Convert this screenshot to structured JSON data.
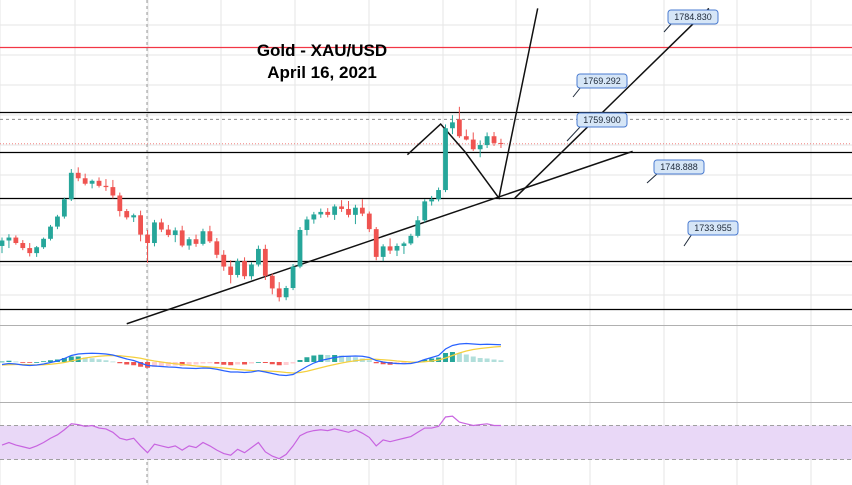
{
  "chart_data": {
    "type": "candlestick",
    "title": "Gold - XAU/USD",
    "subtitle": "April 16, 2021",
    "colors": {
      "bull": "#26a69a",
      "bear": "#ef5350",
      "level": "#000000",
      "resistance": "#f23645",
      "label_bg": "#d6e6f7",
      "label_border": "#4a7bd0",
      "rsi_band": "#e9d8f7",
      "rsi_line": "#c864e0",
      "macd_line": "#2962ff",
      "signal_line": "#f4d03f",
      "hist_bull_strong": "#26a69a",
      "hist_bull_weak": "#b2dfdb",
      "hist_bear_strong": "#ef5350",
      "hist_bear_weak": "#ffcdd2",
      "grid": "#e5e5e5"
    },
    "levels": [
      {
        "label": "1784.830",
        "value": 1784.83,
        "kind": "resistance"
      },
      {
        "label": "1769.292",
        "value": 1769.292,
        "kind": "level"
      },
      {
        "label": "1759.900",
        "value": 1759.9,
        "kind": "level"
      },
      {
        "label": "1748.888",
        "value": 1748.888,
        "kind": "level"
      },
      {
        "label": "1733.955",
        "value": 1733.955,
        "kind": "level"
      }
    ],
    "extra_level": {
      "value": 1722.5
    },
    "price_range": [
      1718.7,
      1796.0
    ],
    "trendline": {
      "from": {
        "bar": 18,
        "price": 1719.0
      },
      "to": {
        "bar": 91,
        "price": 1760.0
      }
    },
    "channel_line": {
      "from": {
        "bar": 74,
        "price": 1748.888
      },
      "to": {
        "bar": 102,
        "price": 1794.0
      }
    },
    "projection_path": [
      {
        "bar": 58.5,
        "price": 1759.2
      },
      {
        "bar": 63.3,
        "price": 1766.5
      },
      {
        "bar": 66.8,
        "price": 1759.9
      },
      {
        "bar": 71.7,
        "price": 1748.888
      },
      {
        "bar": 77.3,
        "price": 1794.0
      }
    ],
    "candles": [
      [
        1737.5,
        1739.5,
        1735.8,
        1738.8
      ],
      [
        1738.8,
        1740.3,
        1737.0,
        1739.5
      ],
      [
        1739.5,
        1740.0,
        1737.8,
        1738.2
      ],
      [
        1738.2,
        1738.9,
        1736.5,
        1737.0
      ],
      [
        1737.0,
        1738.2,
        1735.0,
        1735.8
      ],
      [
        1735.8,
        1737.5,
        1734.9,
        1737.2
      ],
      [
        1737.2,
        1739.5,
        1736.8,
        1739.2
      ],
      [
        1739.2,
        1742.5,
        1738.8,
        1742.1
      ],
      [
        1742.1,
        1744.9,
        1741.5,
        1744.5
      ],
      [
        1744.5,
        1749.0,
        1744.0,
        1748.6
      ],
      [
        1748.6,
        1755.8,
        1748.2,
        1754.9
      ],
      [
        1754.9,
        1756.2,
        1752.9,
        1753.6
      ],
      [
        1753.6,
        1754.7,
        1751.9,
        1752.3
      ],
      [
        1752.3,
        1753.3,
        1751.2,
        1753.0
      ],
      [
        1753.0,
        1753.8,
        1751.4,
        1751.8
      ],
      [
        1751.8,
        1753.4,
        1750.6,
        1751.5
      ],
      [
        1751.5,
        1753.2,
        1748.8,
        1749.5
      ],
      [
        1749.5,
        1750.2,
        1744.5,
        1745.8
      ],
      [
        1745.8,
        1746.3,
        1743.8,
        1744.3
      ],
      [
        1744.3,
        1745.2,
        1743.2,
        1744.8
      ],
      [
        1744.8,
        1745.9,
        1738.6,
        1740.2
      ],
      [
        1740.2,
        1741.3,
        1733.5,
        1738.2
      ],
      [
        1738.2,
        1743.7,
        1737.4,
        1743.1
      ],
      [
        1743.1,
        1744.0,
        1740.8,
        1741.4
      ],
      [
        1741.4,
        1742.5,
        1739.6,
        1740.1
      ],
      [
        1740.1,
        1741.9,
        1738.4,
        1741.2
      ],
      [
        1741.2,
        1742.3,
        1737.2,
        1737.6
      ],
      [
        1737.6,
        1739.6,
        1736.6,
        1739.1
      ],
      [
        1739.1,
        1740.2,
        1737.3,
        1738.0
      ],
      [
        1738.0,
        1741.6,
        1737.6,
        1741.0
      ],
      [
        1741.0,
        1742.3,
        1738.2,
        1738.6
      ],
      [
        1738.6,
        1739.4,
        1734.6,
        1735.4
      ],
      [
        1735.4,
        1736.5,
        1731.6,
        1732.6
      ],
      [
        1732.6,
        1734.1,
        1728.6,
        1730.6
      ],
      [
        1730.6,
        1734.5,
        1730.0,
        1733.9
      ],
      [
        1733.9,
        1734.8,
        1729.6,
        1730.3
      ],
      [
        1730.3,
        1733.6,
        1729.5,
        1733.1
      ],
      [
        1733.1,
        1737.6,
        1732.6,
        1736.8
      ],
      [
        1736.8,
        1737.8,
        1729.4,
        1730.4
      ],
      [
        1730.4,
        1730.9,
        1726.0,
        1727.4
      ],
      [
        1727.4,
        1728.9,
        1724.3,
        1725.3
      ],
      [
        1725.3,
        1728.0,
        1724.6,
        1727.5
      ],
      [
        1727.5,
        1733.2,
        1727.0,
        1732.6
      ],
      [
        1732.6,
        1742.0,
        1732.2,
        1741.3
      ],
      [
        1741.3,
        1744.5,
        1740.0,
        1743.8
      ],
      [
        1743.8,
        1745.6,
        1742.8,
        1745.0
      ],
      [
        1745.0,
        1746.4,
        1744.2,
        1745.6
      ],
      [
        1745.6,
        1746.5,
        1744.3,
        1744.9
      ],
      [
        1744.9,
        1747.4,
        1743.7,
        1746.9
      ],
      [
        1746.9,
        1748.4,
        1745.6,
        1746.3
      ],
      [
        1746.3,
        1748.2,
        1744.3,
        1744.9
      ],
      [
        1744.9,
        1747.3,
        1742.7,
        1746.6
      ],
      [
        1746.6,
        1748.6,
        1744.6,
        1745.2
      ],
      [
        1745.2,
        1745.7,
        1740.8,
        1741.5
      ],
      [
        1741.5,
        1742.0,
        1734.1,
        1734.9
      ],
      [
        1734.9,
        1737.9,
        1733.9,
        1737.4
      ],
      [
        1737.4,
        1739.3,
        1735.6,
        1736.4
      ],
      [
        1736.4,
        1738.1,
        1735.1,
        1737.5
      ],
      [
        1737.5,
        1738.5,
        1735.6,
        1738.1
      ],
      [
        1738.1,
        1740.4,
        1737.7,
        1739.9
      ],
      [
        1739.9,
        1744.6,
        1739.5,
        1743.6
      ],
      [
        1743.6,
        1748.6,
        1743.1,
        1748.1
      ],
      [
        1748.1,
        1749.4,
        1747.1,
        1748.6
      ],
      [
        1748.6,
        1751.4,
        1748.1,
        1750.8
      ],
      [
        1750.8,
        1766.4,
        1750.3,
        1765.5
      ],
      [
        1765.5,
        1768.6,
        1764.1,
        1766.9
      ],
      [
        1767.6,
        1770.6,
        1763.2,
        1763.6
      ],
      [
        1763.6,
        1765.2,
        1762.6,
        1762.8
      ],
      [
        1762.8,
        1764.5,
        1760.1,
        1760.5
      ],
      [
        1760.5,
        1762.6,
        1758.6,
        1761.5
      ],
      [
        1761.5,
        1764.5,
        1760.8,
        1763.6
      ],
      [
        1763.6,
        1764.6,
        1761.3,
        1762.0
      ],
      [
        1762.0,
        1763.0,
        1760.8,
        1761.8
      ]
    ],
    "macd": [
      [
        -0.5,
        -0.6,
        0.1
      ],
      [
        -0.3,
        -0.55,
        0.25
      ],
      [
        -0.4,
        -0.5,
        0.1
      ],
      [
        -0.6,
        -0.5,
        -0.1
      ],
      [
        -0.7,
        -0.55,
        -0.15
      ],
      [
        -0.6,
        -0.6,
        0.0
      ],
      [
        -0.4,
        -0.55,
        0.15
      ],
      [
        -0.1,
        -0.45,
        0.35
      ],
      [
        0.2,
        -0.3,
        0.5
      ],
      [
        0.7,
        -0.1,
        0.8
      ],
      [
        1.3,
        0.2,
        1.1
      ],
      [
        1.6,
        0.5,
        1.1
      ],
      [
        1.7,
        0.8,
        0.9
      ],
      [
        1.75,
        1.0,
        0.75
      ],
      [
        1.7,
        1.15,
        0.55
      ],
      [
        1.6,
        1.25,
        0.35
      ],
      [
        1.4,
        1.3,
        0.1
      ],
      [
        1.0,
        1.25,
        -0.25
      ],
      [
        0.6,
        1.1,
        -0.5
      ],
      [
        0.3,
        0.95,
        -0.65
      ],
      [
        -0.2,
        0.75,
        -0.95
      ],
      [
        -0.7,
        0.45,
        -1.15
      ],
      [
        -0.8,
        0.2,
        -1.0
      ],
      [
        -0.9,
        0.0,
        -0.9
      ],
      [
        -1.0,
        -0.2,
        -0.8
      ],
      [
        -1.05,
        -0.35,
        -0.7
      ],
      [
        -1.2,
        -0.5,
        -0.7
      ],
      [
        -1.25,
        -0.65,
        -0.6
      ],
      [
        -1.3,
        -0.8,
        -0.5
      ],
      [
        -1.2,
        -0.9,
        -0.3
      ],
      [
        -1.25,
        -1.0,
        -0.25
      ],
      [
        -1.45,
        -1.1,
        -0.35
      ],
      [
        -1.75,
        -1.2,
        -0.55
      ],
      [
        -2.0,
        -1.35,
        -0.65
      ],
      [
        -2.0,
        -1.5,
        -0.5
      ],
      [
        -2.1,
        -1.6,
        -0.5
      ],
      [
        -2.0,
        -1.7,
        -0.3
      ],
      [
        -1.75,
        -1.75,
        0.0
      ],
      [
        -2.0,
        -1.8,
        -0.2
      ],
      [
        -2.3,
        -1.85,
        -0.45
      ],
      [
        -2.6,
        -1.95,
        -0.65
      ],
      [
        -2.7,
        -2.1,
        -0.6
      ],
      [
        -2.5,
        -2.2,
        -0.3
      ],
      [
        -1.7,
        -2.1,
        0.4
      ],
      [
        -0.9,
        -1.85,
        0.95
      ],
      [
        -0.2,
        -1.5,
        1.3
      ],
      [
        0.3,
        -1.15,
        1.45
      ],
      [
        0.6,
        -0.8,
        1.4
      ],
      [
        0.9,
        -0.5,
        1.4
      ],
      [
        1.1,
        -0.2,
        1.3
      ],
      [
        1.15,
        0.05,
        1.1
      ],
      [
        1.2,
        0.25,
        0.95
      ],
      [
        1.15,
        0.45,
        0.7
      ],
      [
        0.9,
        0.55,
        0.35
      ],
      [
        0.3,
        0.55,
        -0.25
      ],
      [
        0.0,
        0.45,
        -0.45
      ],
      [
        -0.2,
        0.35,
        -0.55
      ],
      [
        -0.3,
        0.2,
        -0.5
      ],
      [
        -0.35,
        0.1,
        -0.45
      ],
      [
        -0.3,
        0.0,
        -0.3
      ],
      [
        0.0,
        -0.05,
        0.05
      ],
      [
        0.5,
        0.05,
        0.45
      ],
      [
        0.9,
        0.2,
        0.7
      ],
      [
        1.3,
        0.4,
        0.9
      ],
      [
        2.6,
        0.8,
        1.8
      ],
      [
        3.3,
        1.3,
        2.0
      ],
      [
        3.6,
        1.8,
        1.8
      ],
      [
        3.7,
        2.2,
        1.5
      ],
      [
        3.6,
        2.5,
        1.1
      ],
      [
        3.5,
        2.7,
        0.8
      ],
      [
        3.55,
        2.85,
        0.7
      ],
      [
        3.5,
        3.0,
        0.5
      ],
      [
        3.45,
        3.1,
        0.35
      ]
    ],
    "rsi": [
      47,
      50,
      47,
      45,
      43,
      46,
      50,
      55,
      59,
      65,
      72,
      71,
      69,
      70,
      67,
      66,
      62,
      55,
      53,
      55,
      46,
      38,
      48,
      46,
      44,
      46,
      41,
      46,
      44,
      50,
      46,
      41,
      37,
      35,
      42,
      38,
      44,
      50,
      39,
      34,
      31,
      36,
      46,
      58,
      62,
      64,
      65,
      64,
      66,
      64,
      62,
      65,
      61,
      56,
      46,
      53,
      51,
      53,
      55,
      57,
      62,
      67,
      67,
      69,
      80,
      81,
      74,
      72,
      70,
      71,
      72,
      70,
      70
    ],
    "rsi_range": [
      0,
      100
    ],
    "rsi_band": [
      30,
      70
    ],
    "panes": [
      "price",
      "macd",
      "rsi"
    ]
  }
}
